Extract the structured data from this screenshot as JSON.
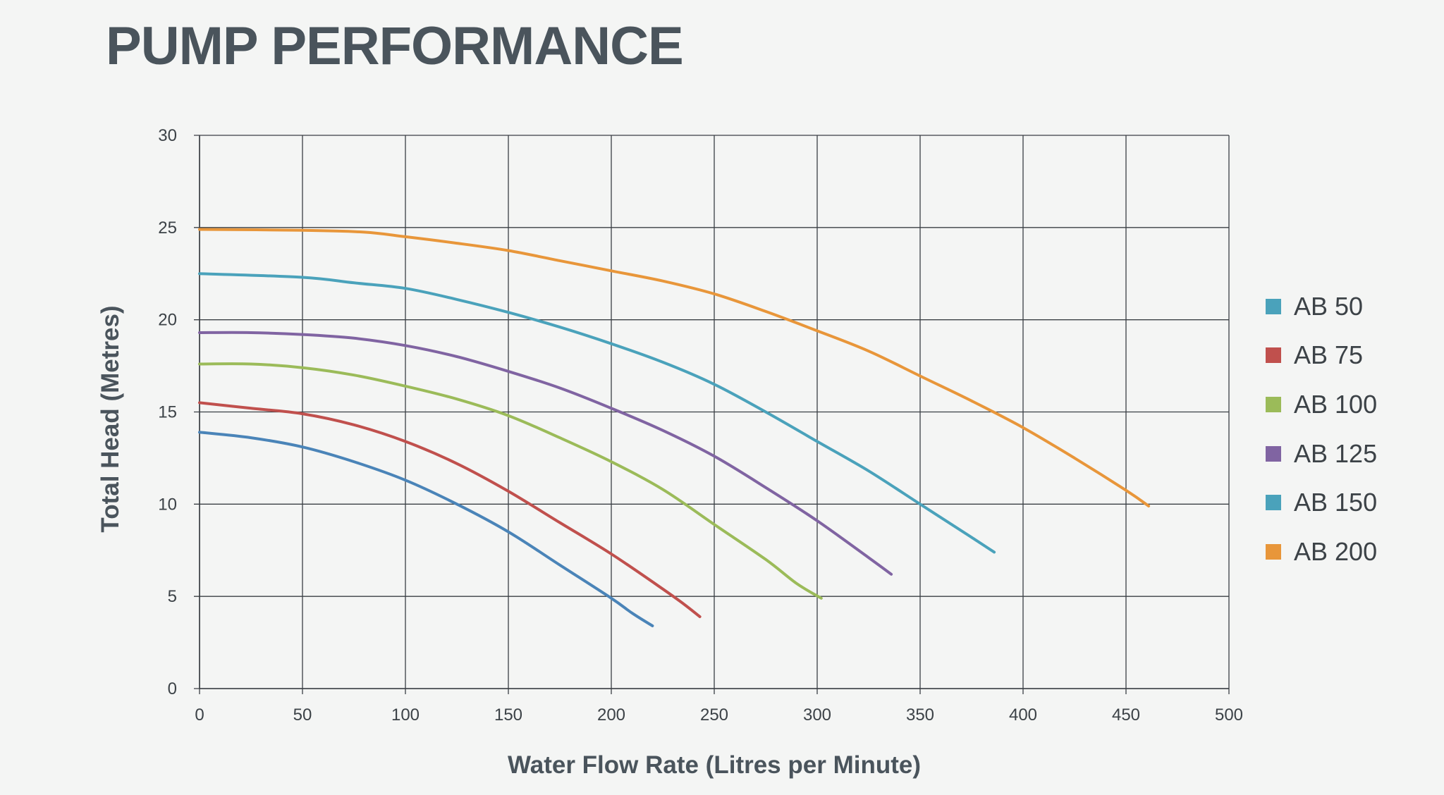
{
  "title": "PUMP PERFORMANCE",
  "chart_data": {
    "type": "line",
    "title": "PUMP PERFORMANCE",
    "xlabel": "Water Flow Rate (Litres per Minute)",
    "ylabel": "Total Head (Metres)",
    "xlim": [
      0,
      500
    ],
    "ylim": [
      0,
      30
    ],
    "xticks": [
      0,
      50,
      100,
      150,
      200,
      250,
      300,
      350,
      400,
      450,
      500
    ],
    "yticks": [
      0,
      5,
      10,
      15,
      20,
      25,
      30
    ],
    "grid": true,
    "legend_position": "right",
    "series": [
      {
        "name": "AB 50",
        "color": "#4a84b8",
        "legend_color": "#4aa2bb",
        "x": [
          0,
          25,
          50,
          75,
          100,
          125,
          150,
          175,
          200,
          210,
          220
        ],
        "y": [
          13.9,
          13.6,
          13.1,
          12.3,
          11.3,
          10.0,
          8.5,
          6.7,
          4.9,
          4.1,
          3.4
        ]
      },
      {
        "name": "AB 75",
        "color": "#c0504d",
        "x": [
          0,
          25,
          50,
          75,
          100,
          125,
          150,
          175,
          200,
          225,
          235,
          243
        ],
        "y": [
          15.5,
          15.2,
          14.9,
          14.3,
          13.4,
          12.2,
          10.7,
          9.0,
          7.3,
          5.4,
          4.6,
          3.9
        ]
      },
      {
        "name": "AB 100",
        "color": "#9bbb59",
        "x": [
          0,
          25,
          50,
          75,
          100,
          125,
          150,
          175,
          200,
          225,
          250,
          275,
          290,
          302
        ],
        "y": [
          17.6,
          17.6,
          17.4,
          17.0,
          16.4,
          15.7,
          14.8,
          13.6,
          12.3,
          10.8,
          8.9,
          7.0,
          5.7,
          4.9
        ]
      },
      {
        "name": "AB 125",
        "color": "#8064a2",
        "x": [
          0,
          25,
          50,
          75,
          100,
          125,
          150,
          175,
          200,
          225,
          250,
          275,
          300,
          325,
          336
        ],
        "y": [
          19.3,
          19.3,
          19.2,
          19.0,
          18.6,
          18.0,
          17.2,
          16.3,
          15.2,
          14.0,
          12.6,
          10.9,
          9.1,
          7.1,
          6.2
        ]
      },
      {
        "name": "AB 150",
        "color": "#4aa2bb",
        "x": [
          0,
          50,
          75,
          100,
          125,
          150,
          175,
          200,
          225,
          250,
          275,
          300,
          325,
          350,
          375,
          386
        ],
        "y": [
          22.5,
          22.3,
          22.0,
          21.7,
          21.1,
          20.4,
          19.6,
          18.7,
          17.7,
          16.5,
          15.0,
          13.4,
          11.8,
          10.0,
          8.2,
          7.4
        ]
      },
      {
        "name": "AB 200",
        "color": "#e8963a",
        "x": [
          0,
          50,
          80,
          100,
          125,
          150,
          175,
          200,
          225,
          250,
          275,
          300,
          325,
          350,
          375,
          400,
          425,
          450,
          461
        ],
        "y": [
          24.9,
          24.85,
          24.75,
          24.5,
          24.15,
          23.75,
          23.2,
          22.65,
          22.1,
          21.4,
          20.45,
          19.4,
          18.3,
          16.95,
          15.6,
          14.15,
          12.5,
          10.75,
          9.9
        ]
      }
    ]
  }
}
